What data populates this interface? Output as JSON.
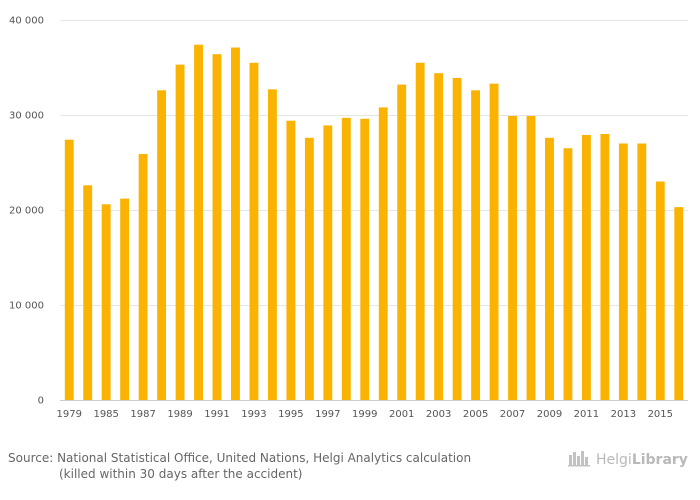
{
  "chart_data": {
    "type": "bar",
    "title": "",
    "xlabel": "",
    "ylabel": "",
    "ylim": [
      0,
      40000
    ],
    "yticks": [
      0,
      10000,
      20000,
      30000,
      40000
    ],
    "ytick_labels": [
      "0",
      "10 000",
      "20 000",
      "30 000",
      "40 000"
    ],
    "categories": [
      "1979",
      "1984",
      "1985",
      "1986",
      "1987",
      "1988",
      "1989",
      "1990",
      "1991",
      "1992",
      "1993",
      "1994",
      "1995",
      "1996",
      "1997",
      "1998",
      "1999",
      "2000",
      "2001",
      "2002",
      "2003",
      "2004",
      "2005",
      "2006",
      "2007",
      "2008",
      "2009",
      "2010",
      "2011",
      "2012",
      "2013",
      "2014",
      "2015",
      "2016"
    ],
    "shown_xticks": [
      "1979",
      "1985",
      "1987",
      "1989",
      "1991",
      "1993",
      "1995",
      "1997",
      "1999",
      "2001",
      "2003",
      "2005",
      "2007",
      "2009",
      "2011",
      "2013",
      "2015"
    ],
    "values": [
      27400,
      22600,
      20600,
      21200,
      25900,
      32600,
      35300,
      37400,
      36400,
      37100,
      35500,
      32700,
      29400,
      27600,
      28900,
      29700,
      29600,
      30800,
      33200,
      35500,
      34400,
      33900,
      32600,
      33300,
      29900,
      29900,
      27600,
      26500,
      27900,
      28000,
      27000,
      27000,
      23000,
      20300
    ],
    "bar_color": "#f9b300",
    "grid": true
  },
  "footer": {
    "source_line1": "Source: National Statistical Office, United Nations, Helgi Analytics calculation",
    "source_line2": "(killed within 30 days after the accident)",
    "brand_name_light": "Helgi",
    "brand_name_bold": "Library",
    "brand_icon": "library-logo-icon"
  }
}
